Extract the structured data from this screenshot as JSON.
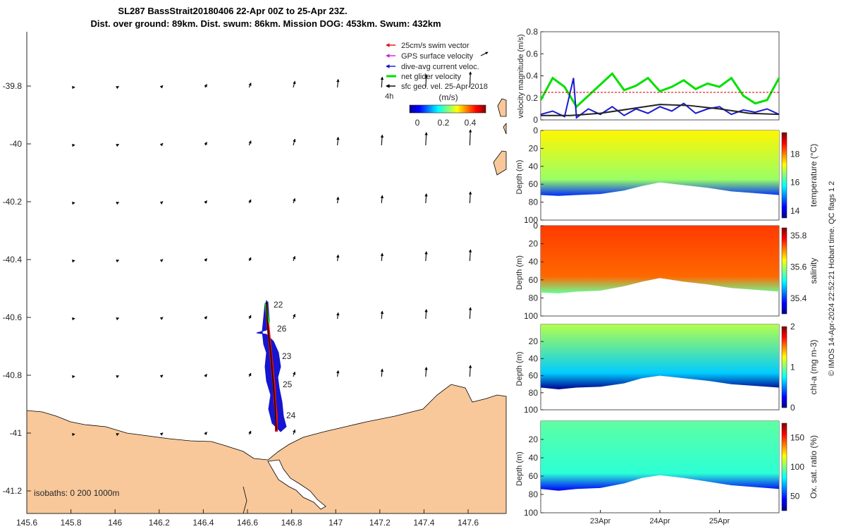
{
  "header": {
    "line1": "SL287 BassStrait20180406 22-Apr 00Z to 25-Apr 23Z.",
    "line2": "Dist. over ground: 89km. Dist. swum: 86km. Mission DOG: 453km. Swum: 432km"
  },
  "copyright": "© IMOS 14-Apr-2024 22:52:21 Hobart time. QC flags 1  2",
  "map": {
    "isobaths_label": "isobaths: 0   200  1000m",
    "legend": [
      {
        "label": "25cm/s swim vector",
        "color": "#e01010"
      },
      {
        "label": "GPS surface velocity",
        "color": "#d020d0"
      },
      {
        "label": "dive-avg current veloc.",
        "color": "#1010d0"
      },
      {
        "label": "net glider velocity",
        "color": "#00e000"
      },
      {
        "label": "sfc geo. vel. 25-Apr-2018",
        "color": "#000000"
      }
    ],
    "legend_extra": "4h",
    "colorbar": {
      "label": "(m/s)",
      "ticks": [
        "0",
        "0.2",
        "0.4"
      ],
      "range": [
        0,
        0.5
      ]
    },
    "x_ticks": [
      "145.6",
      "145.8",
      "146",
      "146.2",
      "146.4",
      "146.6",
      "146.8",
      "147",
      "147.2",
      "147.4",
      "147.6"
    ],
    "y_ticks": [
      "-39.8",
      "-40",
      "-40.2",
      "-40.4",
      "-40.6",
      "-40.8",
      "-41",
      "-41.2"
    ],
    "track_day_labels": [
      "22",
      "26",
      "23",
      "25",
      "24"
    ],
    "land_color": "#f8c89a"
  },
  "chart_data": [
    {
      "type": "line",
      "title": "",
      "ylabel": "velocity magnitude (m/s)",
      "ylim": [
        0,
        0.8
      ],
      "y_ticks": [
        "0",
        "0.2",
        "0.4",
        "0.6",
        "0.8"
      ],
      "x_range_days": [
        22,
        26
      ],
      "series": [
        {
          "name": "",
          "color": "#00e000",
          "x": [
            22.0,
            22.2,
            22.4,
            22.6,
            22.8,
            23.0,
            23.2,
            23.4,
            23.6,
            23.8,
            24.0,
            24.2,
            24.4,
            24.6,
            24.8,
            25.0,
            25.2,
            25.4,
            25.6,
            25.8,
            26.0
          ],
          "values": [
            0.18,
            0.38,
            0.3,
            0.12,
            0.22,
            0.32,
            0.42,
            0.27,
            0.31,
            0.38,
            0.26,
            0.3,
            0.36,
            0.28,
            0.33,
            0.3,
            0.38,
            0.22,
            0.15,
            0.18,
            0.38
          ]
        },
        {
          "name": "",
          "color": "#1a1ad0",
          "x": [
            22.0,
            22.2,
            22.4,
            22.55,
            22.6,
            22.8,
            23.0,
            23.2,
            23.4,
            23.6,
            23.8,
            24.0,
            24.2,
            24.4,
            24.6,
            24.8,
            25.0,
            25.2,
            25.4,
            25.6,
            25.8,
            26.0
          ],
          "values": [
            0.05,
            0.08,
            0.03,
            0.38,
            0.02,
            0.1,
            0.05,
            0.12,
            0.04,
            0.1,
            0.06,
            0.12,
            0.08,
            0.15,
            0.06,
            0.1,
            0.12,
            0.05,
            0.09,
            0.07,
            0.1,
            0.05
          ]
        },
        {
          "name": "",
          "color": "#222222",
          "x": [
            22.0,
            22.5,
            23.0,
            23.5,
            24.0,
            24.5,
            25.0,
            25.5,
            26.0
          ],
          "values": [
            0.04,
            0.04,
            0.06,
            0.1,
            0.14,
            0.13,
            0.1,
            0.06,
            0.05
          ]
        },
        {
          "name": "",
          "color": "#e01010",
          "x": [
            22.0,
            26.0
          ],
          "values": [
            0.25,
            0.25
          ]
        }
      ]
    },
    {
      "type": "heatmap",
      "ylabel": "Depth (m)",
      "y_ticks": [
        "0",
        "20",
        "40",
        "60",
        "80",
        "100"
      ],
      "colorbar_label": "temperature (°C)",
      "colorbar_ticks": [
        "14",
        "16",
        "18"
      ],
      "colorbar_range": [
        13.5,
        19.5
      ],
      "bottom_depth": [
        [
          22.0,
          72
        ],
        [
          22.3,
          73
        ],
        [
          22.6,
          72
        ],
        [
          23.0,
          71
        ],
        [
          23.4,
          67
        ],
        [
          23.7,
          62
        ],
        [
          24.0,
          58
        ],
        [
          24.4,
          61
        ],
        [
          24.8,
          64
        ],
        [
          25.2,
          68
        ],
        [
          25.6,
          70
        ],
        [
          26.0,
          72
        ]
      ],
      "surface_value": 17.3,
      "bottom_value": 16.0
    },
    {
      "type": "heatmap",
      "ylabel": "Depth (m)",
      "y_ticks": [
        "0",
        "20",
        "40",
        "60",
        "80",
        "100"
      ],
      "colorbar_label": "salinity",
      "colorbar_ticks": [
        "35.4",
        "35.6",
        "35.8"
      ],
      "colorbar_range": [
        35.3,
        35.85
      ],
      "bottom_depth": [
        [
          22.0,
          74
        ],
        [
          22.3,
          75
        ],
        [
          22.6,
          73
        ],
        [
          23.0,
          72
        ],
        [
          23.4,
          67
        ],
        [
          23.7,
          62
        ],
        [
          24.0,
          58
        ],
        [
          24.4,
          62
        ],
        [
          24.8,
          65
        ],
        [
          25.2,
          69
        ],
        [
          25.6,
          71
        ],
        [
          26.0,
          73
        ]
      ],
      "surface_value": 35.75,
      "bottom_value": 35.7
    },
    {
      "type": "heatmap",
      "ylabel": "Depth (m)",
      "y_ticks": [
        "20",
        "40",
        "60",
        "80",
        "100"
      ],
      "colorbar_label": "chl-a (mg m-3)",
      "colorbar_ticks": [
        "0",
        "1",
        "2"
      ],
      "colorbar_range": [
        0,
        2
      ],
      "bottom_depth": [
        [
          22.0,
          74
        ],
        [
          22.3,
          76
        ],
        [
          22.6,
          74
        ],
        [
          23.0,
          73
        ],
        [
          23.4,
          69
        ],
        [
          23.7,
          63
        ],
        [
          24.0,
          60
        ],
        [
          24.4,
          63
        ],
        [
          24.8,
          66
        ],
        [
          25.2,
          70
        ],
        [
          25.6,
          72
        ],
        [
          26.0,
          74
        ]
      ],
      "surface_value": 1.1,
      "bottom_value": 0.2
    },
    {
      "type": "heatmap",
      "ylabel": "Depth (m)",
      "y_ticks": [
        "20",
        "40",
        "60",
        "80",
        "100"
      ],
      "x_ticks": [
        "23Apr",
        "24Apr",
        "25Apr"
      ],
      "colorbar_label": "Ox. sat. ratio (%)",
      "colorbar_ticks": [
        "50",
        "100",
        "150"
      ],
      "colorbar_range": [
        25,
        175
      ],
      "bottom_depth": [
        [
          22.0,
          74
        ],
        [
          22.3,
          76
        ],
        [
          22.6,
          74
        ],
        [
          23.0,
          73
        ],
        [
          23.4,
          68
        ],
        [
          23.7,
          62
        ],
        [
          24.0,
          59
        ],
        [
          24.4,
          62
        ],
        [
          24.8,
          66
        ],
        [
          25.2,
          70
        ],
        [
          25.6,
          72
        ],
        [
          26.0,
          74
        ]
      ],
      "surface_value": 95,
      "bottom_value": 80
    }
  ]
}
